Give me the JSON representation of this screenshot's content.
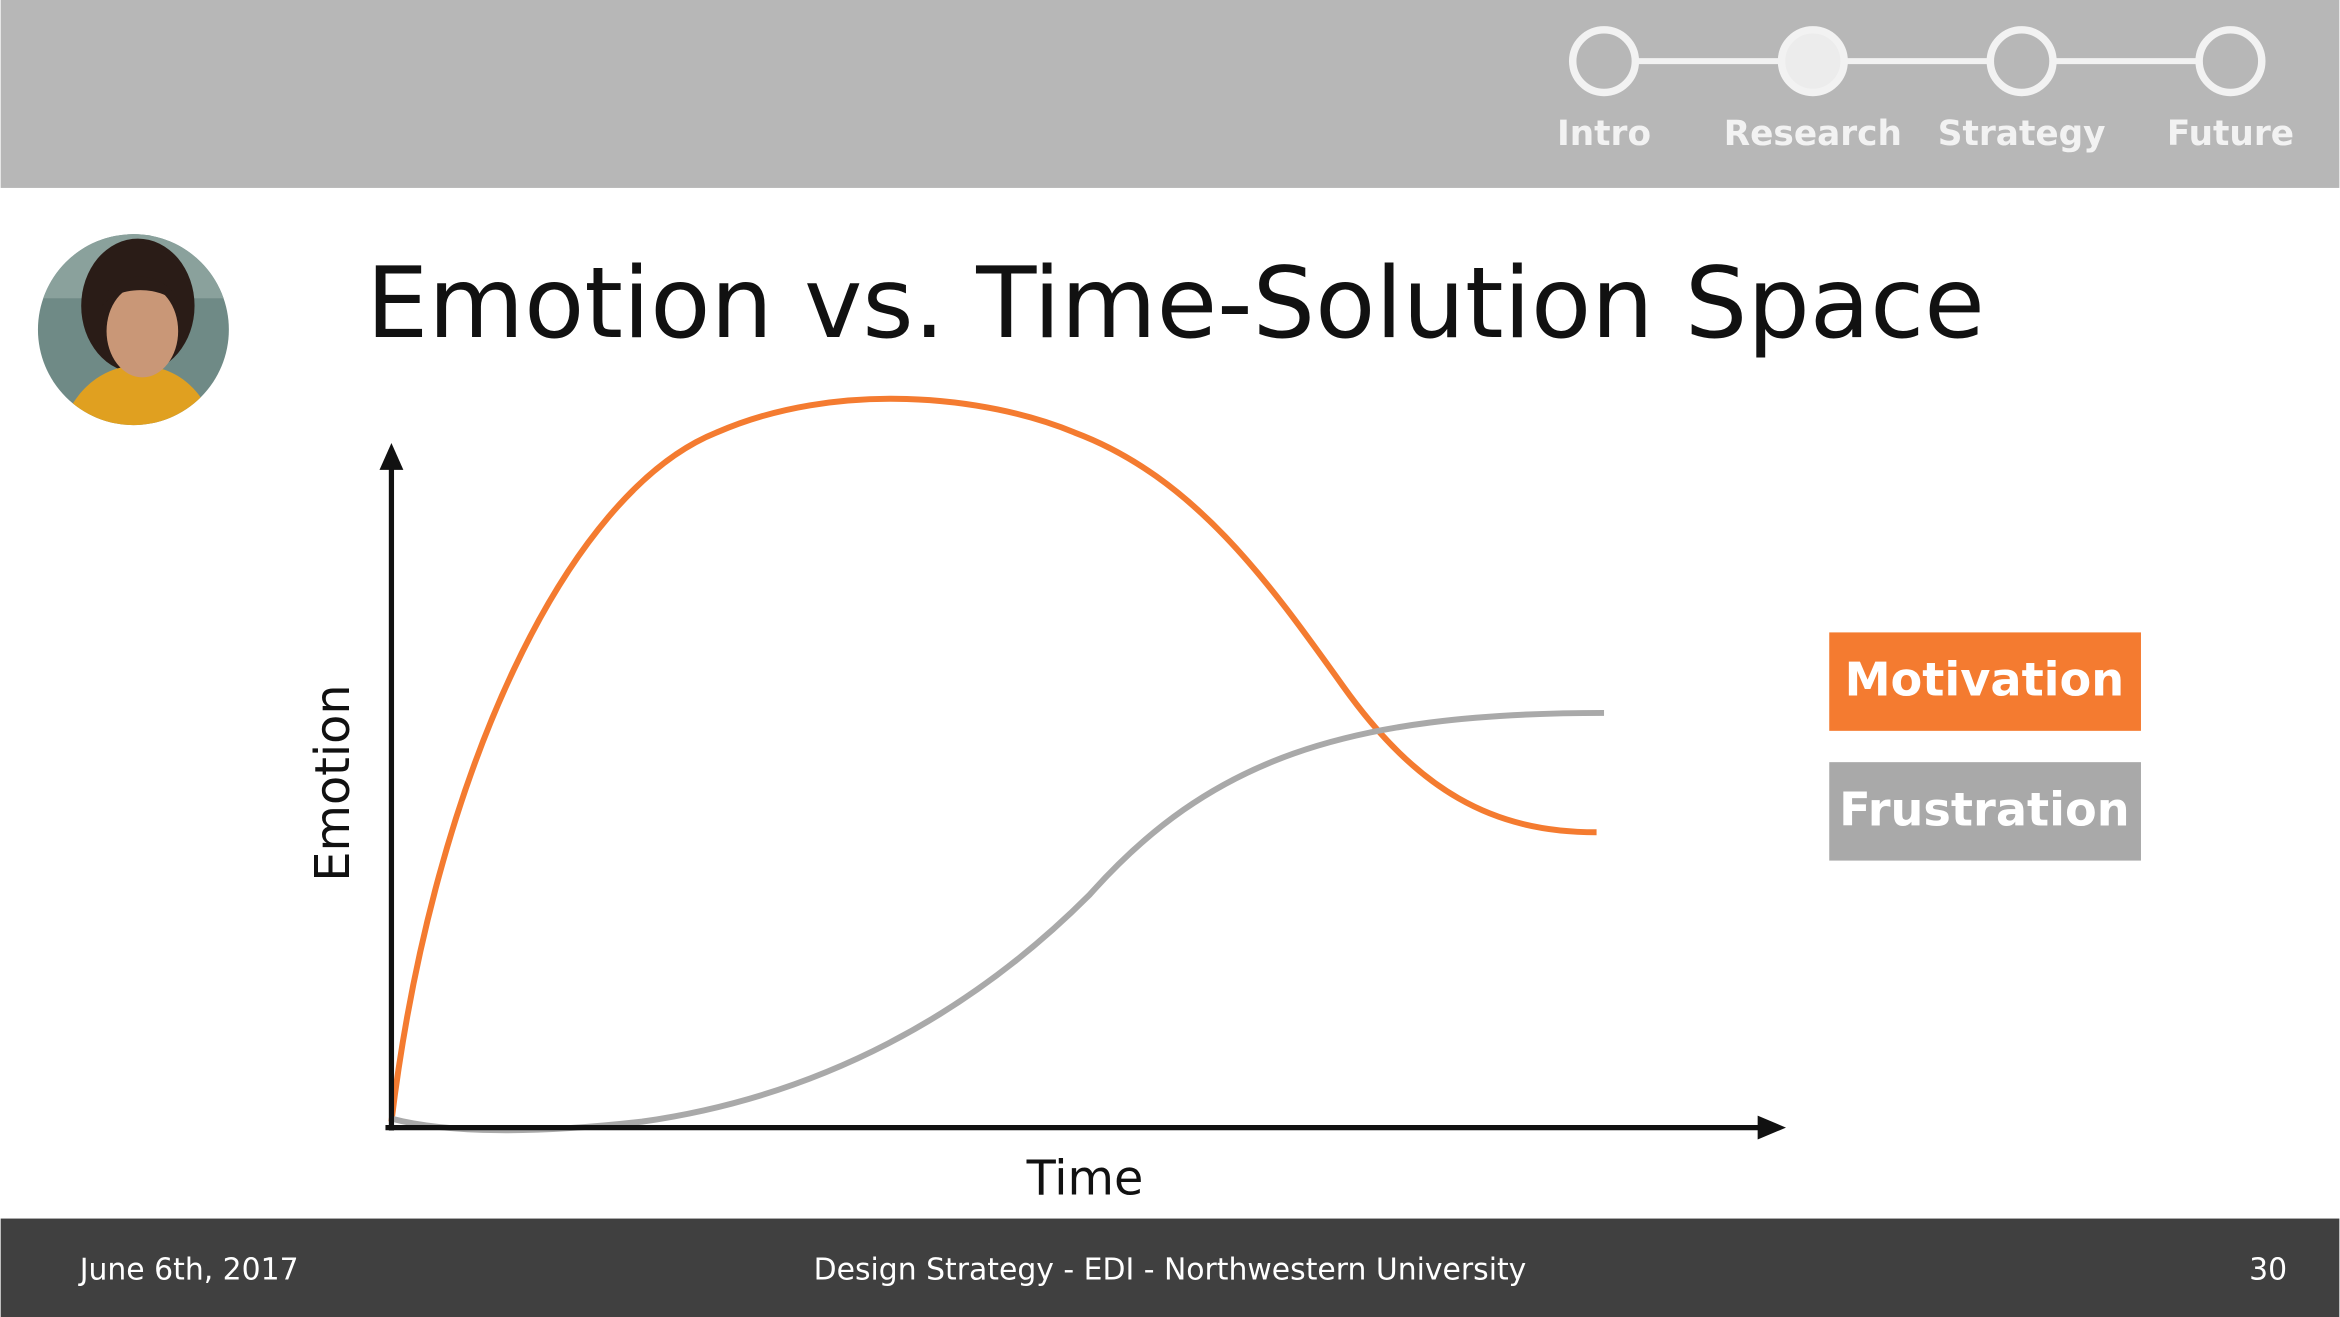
{
  "header": {
    "steps": [
      "Intro",
      "Research",
      "Strategy",
      "Future"
    ],
    "active_step": 1
  },
  "title": "Emotion vs. Time-Solution Space",
  "diagram": {
    "y_axis_label": "Emotion",
    "x_axis_label": "Time",
    "legend": [
      "Motivation",
      "Frustration"
    ]
  },
  "footer": {
    "date": "June 6th, 2017",
    "center": "Design Strategy - EDI - Northwestern University",
    "page": "30"
  }
}
